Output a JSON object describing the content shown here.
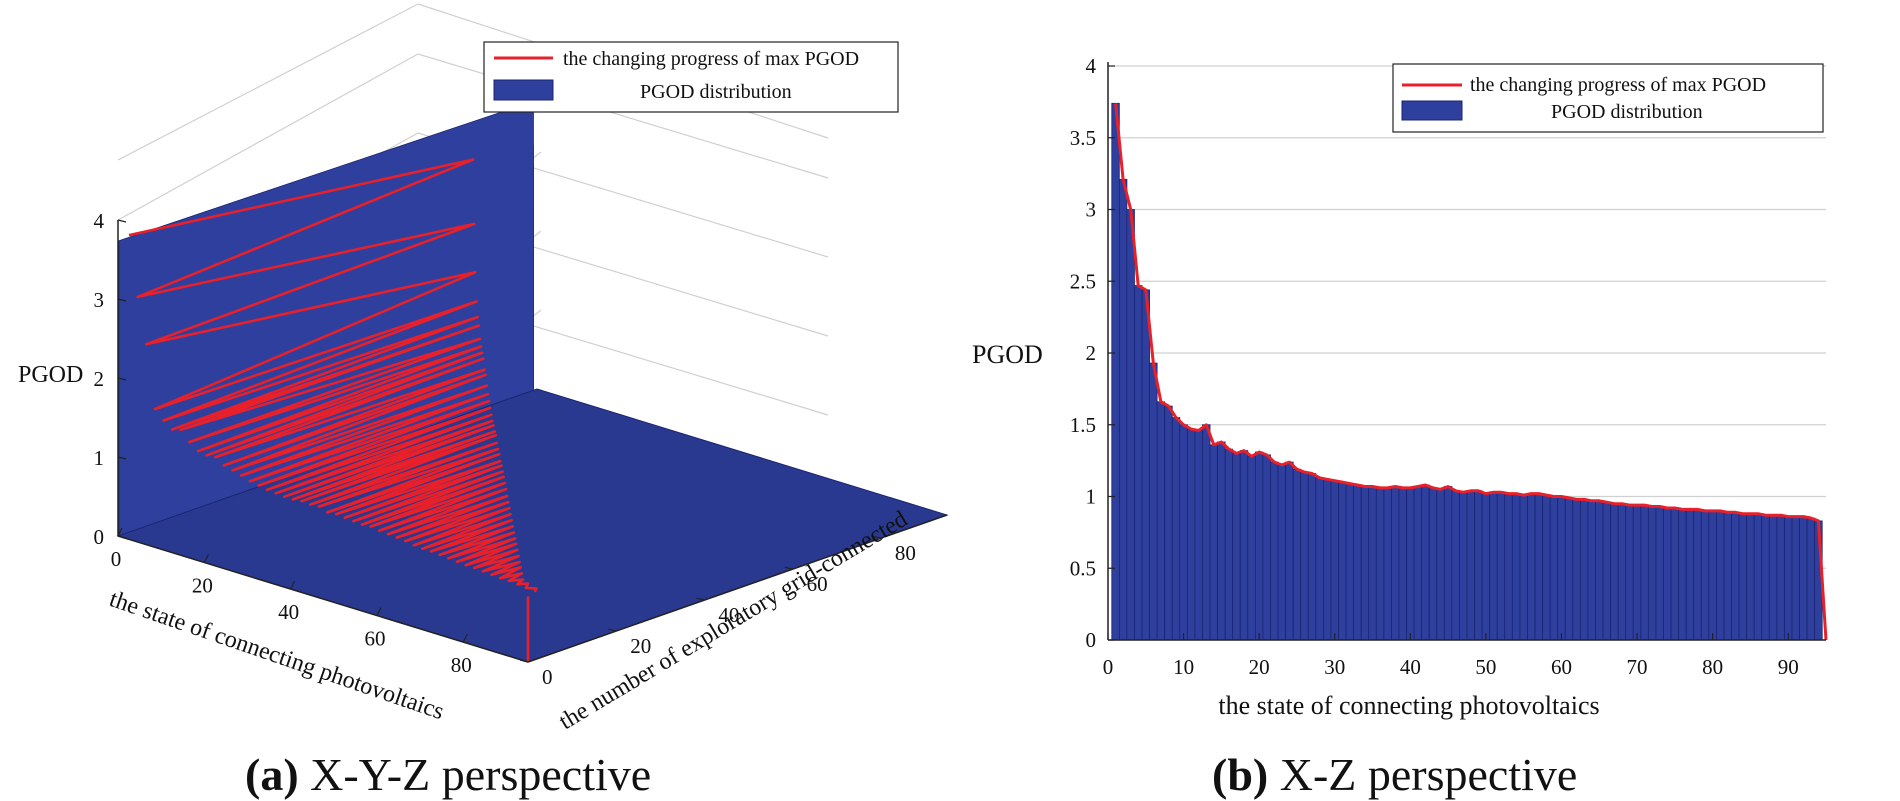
{
  "figure": {
    "caption_a_tag": "(a)",
    "caption_a_text": "X-Y-Z perspective",
    "caption_b_tag": "(b)",
    "caption_b_text": "X-Z perspective"
  },
  "colors": {
    "bar_fill": "#2e3f9e",
    "bar_edge": "#1a2570",
    "line": "#e8202a",
    "grid": "#d0d0d0"
  },
  "chart_data": [
    {
      "type": "bar",
      "view": "3d",
      "title": "",
      "xlabel": "the state of connecting photovoltaics",
      "ylabel": "the number of exploratory grid-connected",
      "zlabel": "PGOD",
      "xticks": [
        "0",
        "20",
        "40",
        "60",
        "80"
      ],
      "yticks": [
        "0",
        "20",
        "40",
        "60",
        "80"
      ],
      "zticks": [
        "0",
        "1",
        "2",
        "3",
        "4"
      ],
      "xlim": [
        0,
        95
      ],
      "ylim": [
        0,
        95
      ],
      "zlim": [
        0,
        4
      ],
      "legend": {
        "position": "top-right",
        "entries": [
          "the changing progress of max PGOD",
          "PGOD distribution"
        ]
      }
    },
    {
      "type": "bar",
      "view": "x-z",
      "title": "",
      "xlabel": "the state of connecting photovoltaics",
      "ylabel": "PGOD",
      "xticks": [
        "0",
        "10",
        "20",
        "30",
        "40",
        "50",
        "60",
        "70",
        "80",
        "90"
      ],
      "yticks": [
        "0",
        "0.5",
        "1",
        "1.5",
        "2",
        "2.5",
        "3",
        "3.5",
        "4"
      ],
      "xlim": [
        0,
        95
      ],
      "ylim": [
        0,
        4
      ],
      "legend": {
        "position": "top-right",
        "entries": [
          "the changing progress of max PGOD",
          "PGOD distribution"
        ]
      },
      "series": [
        {
          "name": "PGOD distribution",
          "x": [
            1,
            2,
            3,
            4,
            5,
            6,
            7,
            8,
            9,
            10,
            11,
            12,
            13,
            14,
            15,
            16,
            17,
            18,
            19,
            20,
            21,
            22,
            23,
            24,
            25,
            26,
            27,
            28,
            29,
            30,
            31,
            32,
            33,
            34,
            35,
            36,
            37,
            38,
            39,
            40,
            41,
            42,
            43,
            44,
            45,
            46,
            47,
            48,
            49,
            50,
            51,
            52,
            53,
            54,
            55,
            56,
            57,
            58,
            59,
            60,
            61,
            62,
            63,
            64,
            65,
            66,
            67,
            68,
            69,
            70,
            71,
            72,
            73,
            74,
            75,
            76,
            77,
            78,
            79,
            80,
            81,
            82,
            83,
            84,
            85,
            86,
            87,
            88,
            89,
            90,
            91,
            92,
            93,
            94
          ],
          "values": [
            3.74,
            3.21,
            3.0,
            2.47,
            2.44,
            1.93,
            1.66,
            1.63,
            1.55,
            1.5,
            1.47,
            1.46,
            1.5,
            1.36,
            1.38,
            1.33,
            1.3,
            1.32,
            1.28,
            1.31,
            1.29,
            1.24,
            1.22,
            1.24,
            1.19,
            1.17,
            1.16,
            1.13,
            1.12,
            1.11,
            1.1,
            1.09,
            1.08,
            1.07,
            1.07,
            1.06,
            1.06,
            1.07,
            1.06,
            1.06,
            1.07,
            1.08,
            1.06,
            1.05,
            1.07,
            1.04,
            1.03,
            1.04,
            1.04,
            1.02,
            1.03,
            1.03,
            1.02,
            1.02,
            1.01,
            1.02,
            1.02,
            1.01,
            1.0,
            1.0,
            0.99,
            0.98,
            0.98,
            0.97,
            0.97,
            0.96,
            0.95,
            0.95,
            0.94,
            0.94,
            0.94,
            0.93,
            0.93,
            0.92,
            0.92,
            0.91,
            0.91,
            0.91,
            0.9,
            0.9,
            0.9,
            0.89,
            0.89,
            0.88,
            0.88,
            0.88,
            0.87,
            0.87,
            0.87,
            0.86,
            0.86,
            0.86,
            0.85,
            0.83
          ]
        },
        {
          "name": "the changing progress of max PGOD",
          "x": [
            1,
            2,
            3,
            4,
            5,
            6,
            7,
            8,
            9,
            10,
            11,
            12,
            13,
            14,
            15,
            16,
            17,
            18,
            19,
            20,
            21,
            22,
            23,
            24,
            25,
            26,
            27,
            28,
            29,
            30,
            31,
            32,
            33,
            34,
            35,
            36,
            37,
            38,
            39,
            40,
            41,
            42,
            43,
            44,
            45,
            46,
            47,
            48,
            49,
            50,
            51,
            52,
            53,
            54,
            55,
            56,
            57,
            58,
            59,
            60,
            61,
            62,
            63,
            64,
            65,
            66,
            67,
            68,
            69,
            70,
            71,
            72,
            73,
            74,
            75,
            76,
            77,
            78,
            79,
            80,
            81,
            82,
            83,
            84,
            85,
            86,
            87,
            88,
            89,
            90,
            91,
            92,
            93,
            94,
            95
          ],
          "values": [
            3.74,
            3.21,
            3.0,
            2.47,
            2.44,
            1.93,
            1.66,
            1.63,
            1.55,
            1.5,
            1.47,
            1.46,
            1.5,
            1.36,
            1.38,
            1.33,
            1.3,
            1.32,
            1.28,
            1.31,
            1.29,
            1.24,
            1.22,
            1.24,
            1.19,
            1.17,
            1.16,
            1.13,
            1.12,
            1.11,
            1.1,
            1.09,
            1.08,
            1.07,
            1.07,
            1.06,
            1.06,
            1.07,
            1.06,
            1.06,
            1.07,
            1.08,
            1.06,
            1.05,
            1.07,
            1.04,
            1.03,
            1.04,
            1.04,
            1.02,
            1.03,
            1.03,
            1.02,
            1.02,
            1.01,
            1.02,
            1.02,
            1.01,
            1.0,
            1.0,
            0.99,
            0.98,
            0.98,
            0.97,
            0.97,
            0.96,
            0.95,
            0.95,
            0.94,
            0.94,
            0.94,
            0.93,
            0.93,
            0.92,
            0.92,
            0.91,
            0.91,
            0.91,
            0.9,
            0.9,
            0.9,
            0.89,
            0.89,
            0.88,
            0.88,
            0.88,
            0.87,
            0.87,
            0.87,
            0.86,
            0.86,
            0.86,
            0.85,
            0.83,
            0.0
          ]
        }
      ]
    }
  ]
}
